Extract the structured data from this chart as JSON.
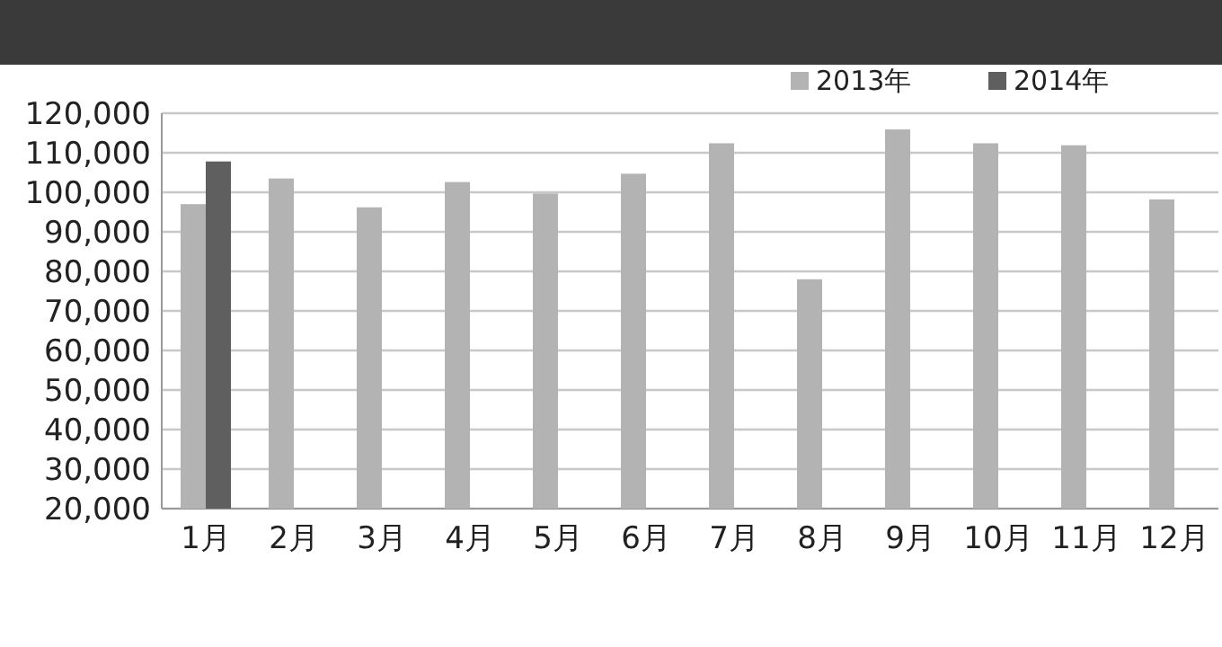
{
  "chart_data": {
    "type": "bar",
    "categories": [
      "1月",
      "2月",
      "3月",
      "4月",
      "5月",
      "6月",
      "7月",
      "8月",
      "9月",
      "10月",
      "11月",
      "12月"
    ],
    "series": [
      {
        "name": "2013年",
        "color": "#b3b3b3",
        "values": [
          97000,
          103500,
          96200,
          102600,
          99700,
          104700,
          112400,
          78000,
          115900,
          112400,
          111900,
          98200
        ]
      },
      {
        "name": "2014年",
        "color": "#5f5f5f",
        "values": [
          107800,
          null,
          null,
          null,
          null,
          null,
          null,
          null,
          null,
          null,
          null,
          null
        ]
      }
    ],
    "ylim": [
      20000,
      120000
    ],
    "yticks": [
      {
        "value": 20000,
        "label": "20,000"
      },
      {
        "value": 30000,
        "label": "30,000"
      },
      {
        "value": 40000,
        "label": "40,000"
      },
      {
        "value": 50000,
        "label": "50,000"
      },
      {
        "value": 60000,
        "label": "60,000"
      },
      {
        "value": 70000,
        "label": "70,000"
      },
      {
        "value": 80000,
        "label": "80,000"
      },
      {
        "value": 90000,
        "label": "90,000"
      },
      {
        "value": 100000,
        "label": "100,000"
      },
      {
        "value": 110000,
        "label": "110,000"
      },
      {
        "value": 120000,
        "label": "120,000"
      }
    ],
    "grid": "y",
    "legend": "top right"
  }
}
